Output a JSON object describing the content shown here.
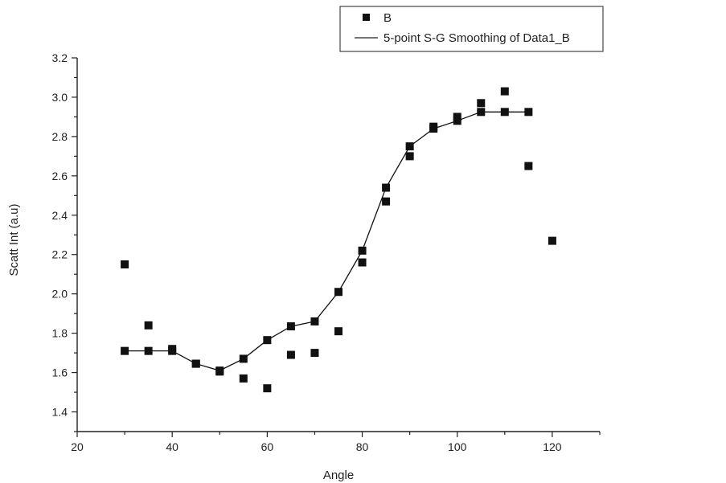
{
  "chart_data": {
    "type": "scatter",
    "xlabel": "Angle",
    "ylabel": "Scatt Int (a.u)",
    "xlim": [
      20,
      130
    ],
    "ylim": [
      1.3,
      3.2
    ],
    "xticks": [
      20,
      40,
      60,
      80,
      100,
      120
    ],
    "xtick_labels": [
      "20",
      "40",
      "60",
      "80",
      "100",
      "120"
    ],
    "yticks": [
      1.4,
      1.6,
      1.8,
      2.0,
      2.2,
      2.4,
      2.6,
      2.8,
      3.0,
      3.2
    ],
    "ytick_labels": [
      "1.4",
      "1.6",
      "1.8",
      "2.0",
      "2.2",
      "2.4",
      "2.6",
      "2.8",
      "3.0",
      "3.2"
    ],
    "grid": false,
    "legend_position": "top-right",
    "series": [
      {
        "name": "B",
        "type": "scatter",
        "marker": "square",
        "color": "#111111",
        "x": [
          30,
          35,
          40,
          45,
          50,
          55,
          60,
          65,
          70,
          75,
          80,
          85,
          90,
          95,
          100,
          105,
          110,
          115,
          120
        ],
        "y": [
          2.15,
          1.84,
          1.72,
          1.645,
          1.605,
          1.57,
          1.52,
          1.69,
          1.7,
          1.81,
          2.16,
          2.47,
          2.7,
          2.85,
          2.9,
          2.97,
          3.03,
          2.65,
          2.27
        ]
      },
      {
        "name": "5-point S-G Smoothing of Data1_B",
        "type": "line",
        "marker": "square",
        "color": "#111111",
        "x": [
          30,
          35,
          40,
          45,
          50,
          55,
          60,
          65,
          70,
          75,
          80,
          85,
          90,
          95,
          100,
          105,
          110,
          115
        ],
        "y": [
          1.71,
          1.71,
          1.71,
          1.645,
          1.61,
          1.67,
          1.765,
          1.835,
          1.86,
          2.01,
          2.22,
          2.54,
          2.75,
          2.84,
          2.88,
          2.925,
          2.925,
          2.925
        ]
      }
    ]
  }
}
